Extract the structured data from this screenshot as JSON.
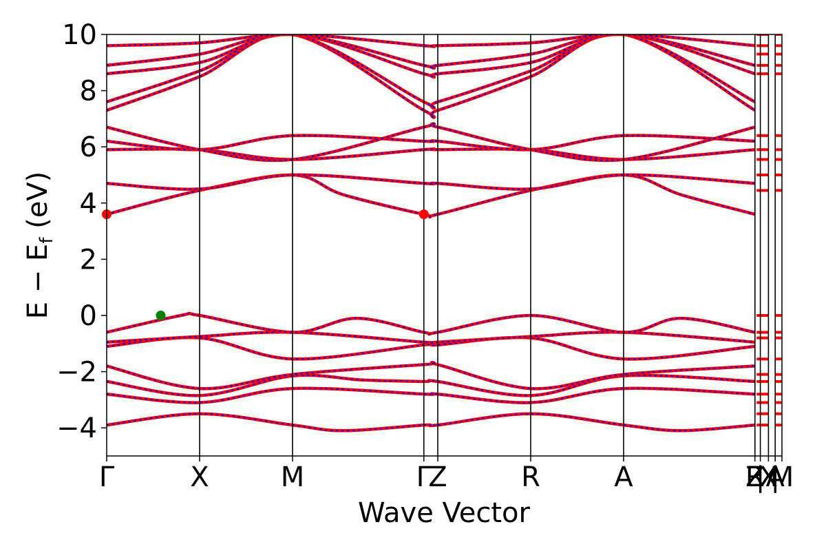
{
  "chart_data": {
    "type": "line",
    "title": "",
    "xlabel": "Wave Vector",
    "ylabel": "E − E",
    "ylabel_sub": "f",
    "ylabel_unit": " (eV)",
    "ylim": [
      -5,
      10
    ],
    "yticks": [
      {
        "value": -4,
        "label": "−4"
      },
      {
        "value": -2,
        "label": "−2"
      },
      {
        "value": 0,
        "label": "0"
      },
      {
        "value": 2,
        "label": "2"
      },
      {
        "value": 4,
        "label": "4"
      },
      {
        "value": 6,
        "label": "6"
      },
      {
        "value": 8,
        "label": "8"
      },
      {
        "value": 10,
        "label": "10"
      }
    ],
    "kpath_length": 1.0,
    "high_symmetry_points": [
      {
        "label": "Γ",
        "k": 0.0
      },
      {
        "label": "X",
        "k": 0.1376
      },
      {
        "label": "M",
        "k": 0.2752
      },
      {
        "label": "Γ",
        "k": 0.4697
      },
      {
        "label": "Z",
        "k": 0.4903
      },
      {
        "label": "R",
        "k": 0.6279
      },
      {
        "label": "A",
        "k": 0.7655
      },
      {
        "label": "Z",
        "k": 0.96
      },
      {
        "label": "R",
        "k": 0.96
      },
      {
        "label": "|",
        "k": 0.968
      },
      {
        "label": "X",
        "k": 0.98
      },
      {
        "label": "|",
        "k": 0.99
      },
      {
        "label": "A",
        "k": 0.99
      },
      {
        "label": "M",
        "k": 1.0
      }
    ],
    "segment_boundaries": [
      0.0,
      0.1376,
      0.2752,
      0.4697,
      0.4903,
      0.6279,
      0.7655,
      0.96,
      0.98,
      1.0
    ],
    "series": [
      {
        "color": "#ff0000",
        "style": "solid"
      },
      {
        "color": "#0000ff",
        "style": "dashed"
      }
    ],
    "valence_bands": [
      [
        [
          0.0,
          -3.9
        ],
        [
          0.1376,
          -3.5
        ],
        [
          0.2752,
          -3.9
        ],
        [
          0.35,
          -4.1
        ],
        [
          0.4697,
          -3.9
        ],
        [
          0.4903,
          -3.9
        ],
        [
          0.6279,
          -3.5
        ],
        [
          0.7655,
          -3.9
        ],
        [
          0.85,
          -4.1
        ],
        [
          0.96,
          -3.9
        ]
      ],
      [
        [
          0.0,
          -2.8
        ],
        [
          0.1376,
          -3.1
        ],
        [
          0.2752,
          -2.6
        ],
        [
          0.4697,
          -2.8
        ],
        [
          0.4903,
          -2.8
        ],
        [
          0.6279,
          -3.1
        ],
        [
          0.7655,
          -2.6
        ],
        [
          0.96,
          -2.8
        ]
      ],
      [
        [
          0.0,
          -2.35
        ],
        [
          0.1376,
          -2.85
        ],
        [
          0.2752,
          -2.15
        ],
        [
          0.38,
          -2.3
        ],
        [
          0.4697,
          -2.35
        ],
        [
          0.4903,
          -2.35
        ],
        [
          0.6279,
          -2.85
        ],
        [
          0.7655,
          -2.15
        ],
        [
          0.96,
          -2.35
        ]
      ],
      [
        [
          0.0,
          -1.8
        ],
        [
          0.1376,
          -2.6
        ],
        [
          0.2752,
          -2.1
        ],
        [
          0.4697,
          -1.75
        ],
        [
          0.4903,
          -1.75
        ],
        [
          0.6279,
          -2.6
        ],
        [
          0.7655,
          -2.1
        ],
        [
          0.96,
          -1.8
        ]
      ],
      [
        [
          0.0,
          -1.1
        ],
        [
          0.1376,
          -0.8
        ],
        [
          0.2752,
          -1.55
        ],
        [
          0.4697,
          -1.05
        ],
        [
          0.4903,
          -1.05
        ],
        [
          0.6279,
          -0.8
        ],
        [
          0.7655,
          -1.55
        ],
        [
          0.96,
          -1.1
        ]
      ],
      [
        [
          0.0,
          -0.95
        ],
        [
          0.1376,
          -0.75
        ],
        [
          0.2752,
          -0.6
        ],
        [
          0.4697,
          -0.95
        ],
        [
          0.4903,
          -0.95
        ],
        [
          0.6279,
          -0.75
        ],
        [
          0.7655,
          -0.6
        ],
        [
          0.96,
          -0.95
        ]
      ],
      [
        [
          0.0,
          -0.6
        ],
        [
          0.11,
          0.0
        ],
        [
          0.1376,
          0.0
        ],
        [
          0.2752,
          -0.6
        ],
        [
          0.37,
          -0.1
        ],
        [
          0.4697,
          -0.6
        ],
        [
          0.4903,
          -0.6
        ],
        [
          0.6279,
          0.0
        ],
        [
          0.7655,
          -0.6
        ],
        [
          0.85,
          -0.1
        ],
        [
          0.96,
          -0.6
        ]
      ]
    ],
    "conduction_bands": [
      [
        [
          0.0,
          3.6
        ],
        [
          0.1376,
          4.45
        ],
        [
          0.2752,
          5.0
        ],
        [
          0.35,
          4.3
        ],
        [
          0.4697,
          3.6
        ],
        [
          0.4903,
          3.6
        ],
        [
          0.6279,
          4.45
        ],
        [
          0.7655,
          5.0
        ],
        [
          0.85,
          4.3
        ],
        [
          0.96,
          3.6
        ]
      ],
      [
        [
          0.0,
          4.7
        ],
        [
          0.1376,
          4.5
        ],
        [
          0.2752,
          5.0
        ],
        [
          0.4697,
          4.7
        ],
        [
          0.4903,
          4.7
        ],
        [
          0.6279,
          4.5
        ],
        [
          0.7655,
          5.0
        ],
        [
          0.96,
          4.7
        ]
      ],
      [
        [
          0.0,
          5.9
        ],
        [
          0.1376,
          5.9
        ],
        [
          0.2752,
          5.55
        ],
        [
          0.4697,
          5.9
        ],
        [
          0.4903,
          5.9
        ],
        [
          0.6279,
          5.9
        ],
        [
          0.7655,
          5.55
        ],
        [
          0.96,
          5.9
        ]
      ],
      [
        [
          0.0,
          6.2
        ],
        [
          0.1376,
          5.9
        ],
        [
          0.2752,
          6.4
        ],
        [
          0.4697,
          6.2
        ],
        [
          0.4903,
          6.2
        ],
        [
          0.6279,
          5.9
        ],
        [
          0.7655,
          6.4
        ],
        [
          0.96,
          6.2
        ]
      ],
      [
        [
          0.0,
          6.7
        ],
        [
          0.1376,
          5.9
        ],
        [
          0.2752,
          5.55
        ],
        [
          0.4697,
          6.7
        ],
        [
          0.4903,
          6.7
        ],
        [
          0.6279,
          5.9
        ],
        [
          0.7655,
          5.55
        ],
        [
          0.96,
          6.7
        ]
      ],
      [
        [
          0.0,
          7.3
        ],
        [
          0.1376,
          8.5
        ],
        [
          0.2752,
          10.0
        ],
        [
          0.4697,
          7.3
        ],
        [
          0.4903,
          7.3
        ],
        [
          0.6279,
          8.5
        ],
        [
          0.7655,
          10.0
        ],
        [
          0.96,
          7.3
        ]
      ],
      [
        [
          0.0,
          7.6
        ],
        [
          0.1376,
          8.7
        ],
        [
          0.2752,
          10.0
        ],
        [
          0.4697,
          7.6
        ],
        [
          0.4903,
          7.6
        ],
        [
          0.6279,
          8.7
        ],
        [
          0.7655,
          10.0
        ],
        [
          0.96,
          7.6
        ]
      ],
      [
        [
          0.0,
          8.6
        ],
        [
          0.1376,
          9.0
        ],
        [
          0.2752,
          10.0
        ],
        [
          0.4697,
          8.6
        ],
        [
          0.4903,
          8.6
        ],
        [
          0.6279,
          9.0
        ],
        [
          0.7655,
          10.0
        ],
        [
          0.96,
          8.6
        ]
      ],
      [
        [
          0.0,
          8.9
        ],
        [
          0.1376,
          9.3
        ],
        [
          0.2752,
          10.0
        ],
        [
          0.4697,
          8.9
        ],
        [
          0.4903,
          8.9
        ],
        [
          0.6279,
          9.3
        ],
        [
          0.7655,
          10.0
        ],
        [
          0.96,
          8.9
        ]
      ],
      [
        [
          0.0,
          9.6
        ],
        [
          0.1376,
          9.7
        ],
        [
          0.2752,
          10.0
        ],
        [
          0.4697,
          9.6
        ],
        [
          0.4903,
          9.6
        ],
        [
          0.6279,
          9.7
        ],
        [
          0.7655,
          10.0
        ],
        [
          0.96,
          9.6
        ]
      ]
    ],
    "markers": [
      {
        "k": 0.0,
        "E": 3.6,
        "color": "#ff0000"
      },
      {
        "k": 0.4697,
        "E": 3.6,
        "color": "#ff0000"
      },
      {
        "k": 0.08,
        "E": 0.0,
        "color": "#008000"
      }
    ],
    "grid": false,
    "legend": "none"
  }
}
